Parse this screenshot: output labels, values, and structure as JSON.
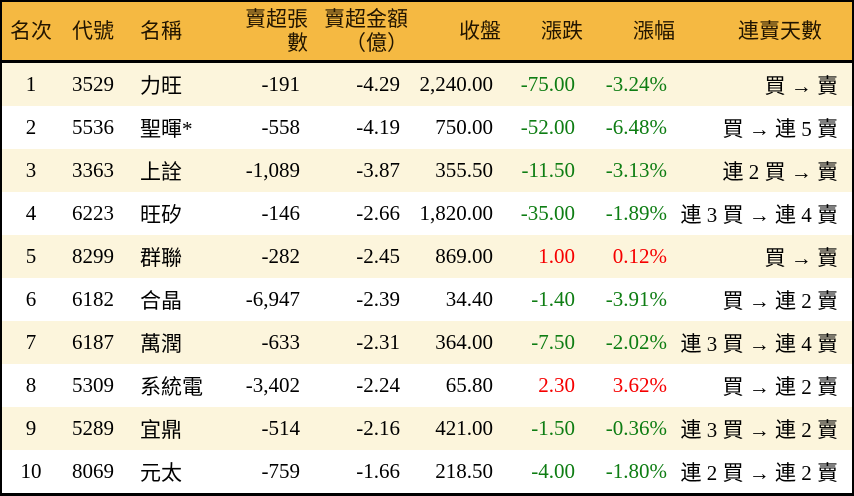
{
  "table": {
    "columns": [
      {
        "key": "rank",
        "label": "名次"
      },
      {
        "key": "code",
        "label": "代號"
      },
      {
        "key": "name",
        "label": "名稱"
      },
      {
        "key": "sell_volume",
        "label": "賣超張數"
      },
      {
        "key": "sell_amount",
        "label": "賣超金額",
        "label2": "（億）"
      },
      {
        "key": "close",
        "label": "收盤"
      },
      {
        "key": "change",
        "label": "漲跌"
      },
      {
        "key": "change_pct",
        "label": "漲幅"
      },
      {
        "key": "streak",
        "label": "連賣天數"
      }
    ],
    "rows": [
      {
        "rank": "1",
        "code": "3529",
        "name": "力旺",
        "sell_volume": "-191",
        "sell_amount": "-4.29",
        "close": "2,240.00",
        "change": "-75.00",
        "change_pct": "-3.24%",
        "trend": "down",
        "streak": "買 → 賣"
      },
      {
        "rank": "2",
        "code": "5536",
        "name": "聖暉*",
        "sell_volume": "-558",
        "sell_amount": "-4.19",
        "close": "750.00",
        "change": "-52.00",
        "change_pct": "-6.48%",
        "trend": "down",
        "streak": "買 → 連 5 賣"
      },
      {
        "rank": "3",
        "code": "3363",
        "name": "上詮",
        "sell_volume": "-1,089",
        "sell_amount": "-3.87",
        "close": "355.50",
        "change": "-11.50",
        "change_pct": "-3.13%",
        "trend": "down",
        "streak": "連 2 買 → 賣"
      },
      {
        "rank": "4",
        "code": "6223",
        "name": "旺矽",
        "sell_volume": "-146",
        "sell_amount": "-2.66",
        "close": "1,820.00",
        "change": "-35.00",
        "change_pct": "-1.89%",
        "trend": "down",
        "streak": "連 3 買 → 連 4 賣"
      },
      {
        "rank": "5",
        "code": "8299",
        "name": "群聯",
        "sell_volume": "-282",
        "sell_amount": "-2.45",
        "close": "869.00",
        "change": "1.00",
        "change_pct": "0.12%",
        "trend": "up",
        "streak": "買 → 賣"
      },
      {
        "rank": "6",
        "code": "6182",
        "name": "合晶",
        "sell_volume": "-6,947",
        "sell_amount": "-2.39",
        "close": "34.40",
        "change": "-1.40",
        "change_pct": "-3.91%",
        "trend": "down",
        "streak": "買 → 連 2 賣"
      },
      {
        "rank": "7",
        "code": "6187",
        "name": "萬潤",
        "sell_volume": "-633",
        "sell_amount": "-2.31",
        "close": "364.00",
        "change": "-7.50",
        "change_pct": "-2.02%",
        "trend": "down",
        "streak": "連 3 買 → 連 4 賣"
      },
      {
        "rank": "8",
        "code": "5309",
        "name": "系統電",
        "sell_volume": "-3,402",
        "sell_amount": "-2.24",
        "close": "65.80",
        "change": "2.30",
        "change_pct": "3.62%",
        "trend": "up",
        "streak": "買 → 連 2 賣"
      },
      {
        "rank": "9",
        "code": "5289",
        "name": "宜鼎",
        "sell_volume": "-514",
        "sell_amount": "-2.16",
        "close": "421.00",
        "change": "-1.50",
        "change_pct": "-0.36%",
        "trend": "down",
        "streak": "連 3 買 → 連 2 賣"
      },
      {
        "rank": "10",
        "code": "8069",
        "name": "元太",
        "sell_volume": "-759",
        "sell_amount": "-1.66",
        "close": "218.50",
        "change": "-4.00",
        "change_pct": "-1.80%",
        "trend": "down",
        "streak": "連 2 買 → 連 2 賣"
      }
    ]
  },
  "colors": {
    "header_bg": "#F5B942",
    "header_fg": "#221500",
    "row_alt_bg": "#FCF5DC",
    "up": "#F60000",
    "down": "#0E7D13"
  }
}
